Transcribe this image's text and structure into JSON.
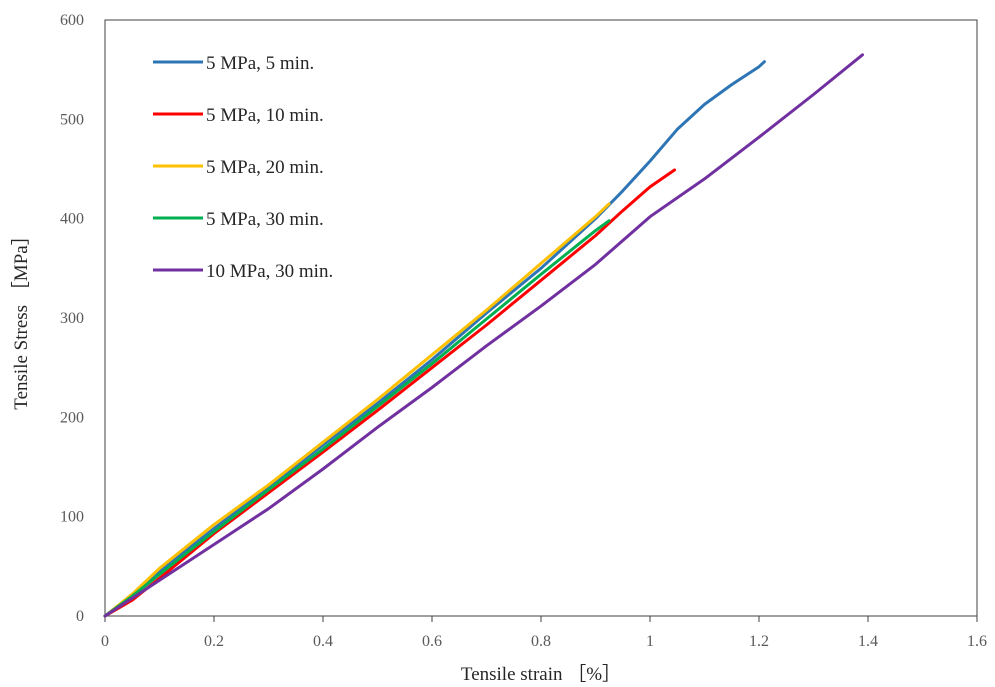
{
  "chart_data": {
    "type": "line",
    "title": "",
    "xlabel": "Tensile strain ［%］",
    "ylabel": "Tensile Stress ［MPa］",
    "xlim": [
      0,
      1.6
    ],
    "ylim": [
      0,
      600
    ],
    "x_ticks": [
      "0",
      "0.2",
      "0.4",
      "0.6",
      "0.8",
      "1",
      "1.2",
      "1.4",
      "1.6"
    ],
    "y_ticks": [
      "0",
      "100",
      "200",
      "300",
      "400",
      "500",
      "600"
    ],
    "grid": false,
    "legend_position": "top-left",
    "series": [
      {
        "name": "5 MPa, 5 min.",
        "color": "#2E75B6",
        "x": [
          0,
          0.05,
          0.1,
          0.2,
          0.3,
          0.4,
          0.5,
          0.6,
          0.7,
          0.8,
          0.9,
          0.95,
          1.0,
          1.05,
          1.1,
          1.15,
          1.2,
          1.21
        ],
        "y": [
          0,
          20,
          45,
          88,
          130,
          172,
          214,
          258,
          305,
          350,
          400,
          428,
          458,
          490,
          515,
          535,
          553,
          558
        ]
      },
      {
        "name": "5 MPa, 10 min.",
        "color": "#FF0000",
        "x": [
          0,
          0.05,
          0.1,
          0.2,
          0.3,
          0.4,
          0.5,
          0.6,
          0.7,
          0.8,
          0.9,
          0.95,
          1.0,
          1.045
        ],
        "y": [
          0,
          16,
          38,
          83,
          124,
          165,
          207,
          250,
          293,
          338,
          383,
          408,
          432,
          449
        ]
      },
      {
        "name": "5 MPa, 20 min.",
        "color": "#FFC000",
        "x": [
          0,
          0.05,
          0.1,
          0.2,
          0.3,
          0.4,
          0.5,
          0.6,
          0.7,
          0.8,
          0.9,
          0.925
        ],
        "y": [
          0,
          22,
          48,
          92,
          132,
          175,
          218,
          263,
          308,
          355,
          402,
          415
        ]
      },
      {
        "name": "5 MPa, 30 min.",
        "color": "#00B050",
        "x": [
          0,
          0.05,
          0.1,
          0.2,
          0.3,
          0.4,
          0.5,
          0.6,
          0.7,
          0.8,
          0.9,
          0.925
        ],
        "y": [
          0,
          20,
          42,
          85,
          127,
          168,
          211,
          254,
          299,
          344,
          388,
          398
        ]
      },
      {
        "name": "10 MPa, 30 min.",
        "color": "#7030A0",
        "x": [
          0,
          0.05,
          0.1,
          0.2,
          0.3,
          0.4,
          0.5,
          0.6,
          0.7,
          0.8,
          0.9,
          1.0,
          1.1,
          1.2,
          1.3,
          1.39
        ],
        "y": [
          0,
          18,
          36,
          72,
          108,
          148,
          190,
          230,
          272,
          312,
          354,
          402,
          440,
          482,
          525,
          565
        ]
      }
    ]
  }
}
